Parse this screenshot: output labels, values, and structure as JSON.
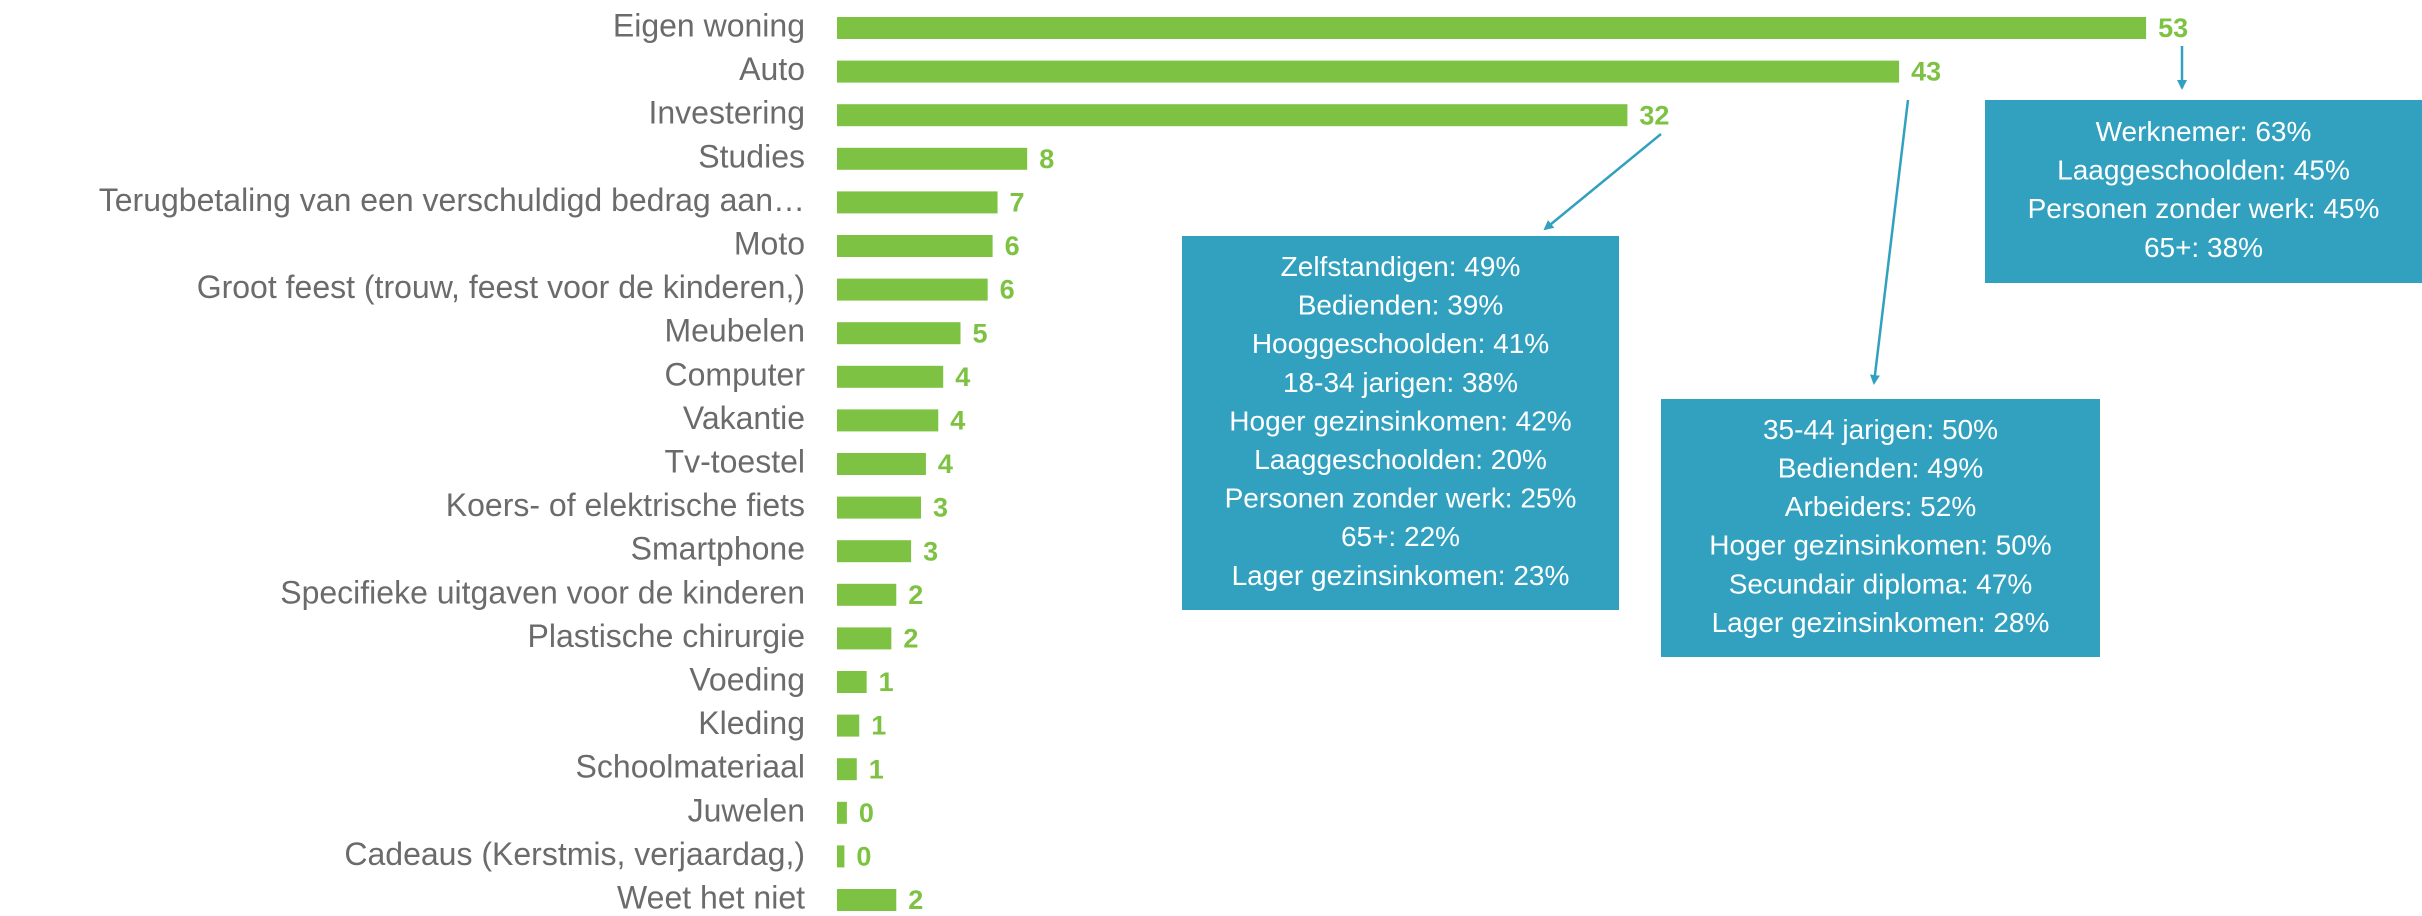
{
  "chart_data": {
    "type": "bar",
    "orientation": "horizontal",
    "color": "#7dc242",
    "categories": [
      "Eigen woning",
      "Auto",
      "Investering",
      "Studies",
      "Terugbetaling van een verschuldigd bedrag aan…",
      "Moto",
      "Groot feest (trouw, feest voor de kinderen,)",
      "Meubelen",
      "Computer",
      "Vakantie",
      "Tv-toestel",
      "Koers- of elektrische fiets",
      "Smartphone",
      "Specifieke uitgaven voor de kinderen",
      "Plastische chirurgie",
      "Voeding",
      "Kleding",
      "Schoolmateriaal",
      "Juwelen",
      "Cadeaus (Kerstmis, verjaardag,)",
      "Weet het niet"
    ],
    "values": [
      53,
      43,
      32,
      7.7,
      6.5,
      6.3,
      6.1,
      5,
      4.3,
      4.1,
      3.6,
      3.4,
      3,
      2.4,
      2.2,
      1.2,
      0.9,
      0.8,
      0.4,
      0.3,
      2.4
    ],
    "value_labels": [
      "53",
      "43",
      "32",
      "8",
      "7",
      "6",
      "6",
      "5",
      "4",
      "4",
      "4",
      "3",
      "3",
      "2",
      "2",
      "1",
      "1",
      "1",
      "0",
      "0",
      "2"
    ],
    "annotations": [
      {
        "color": "#31a1bf",
        "lines": [
          "Zelfstandigen: 49%",
          "Bedienden: 39%",
          "Hooggeschoolden: 41%",
          "18-34 jarigen: 38%",
          "Hoger gezinsinkomen: 42%",
          "Laaggeschoolden: 20%",
          "Personen zonder werk: 25%",
          "65+: 22%",
          "Lager gezinsinkomen: 23%"
        ]
      },
      {
        "color": "#31a1bf",
        "lines": [
          "35-44 jarigen: 50%",
          "Bedienden: 49%",
          "Arbeiders: 52%",
          "Hoger gezinsinkomen: 50%",
          "Secundair diploma: 47%",
          "Lager gezinsinkomen: 28%"
        ]
      },
      {
        "color": "#31a1bf",
        "lines": [
          "Werknemer: 63%",
          "Laaggeschoolden: 45%",
          "Personen zonder werk: 45%",
          "65+: 38%"
        ]
      }
    ]
  }
}
